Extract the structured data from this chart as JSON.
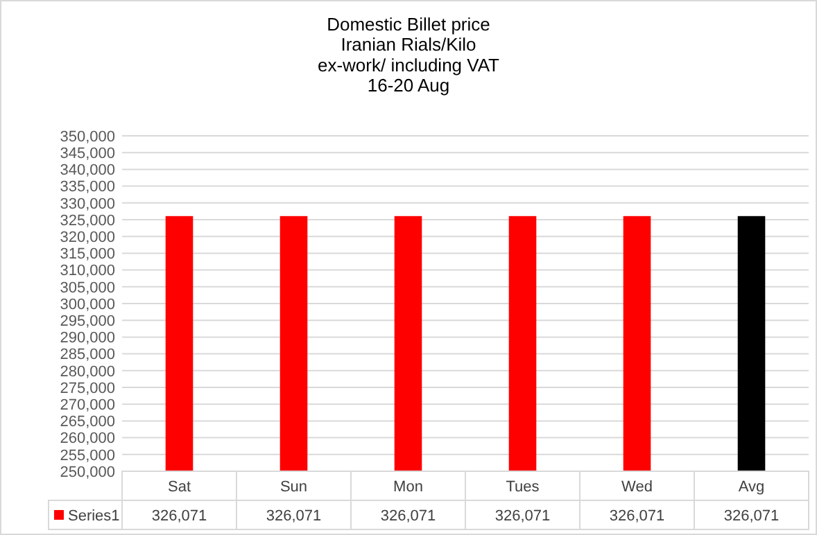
{
  "chart_data": {
    "type": "bar",
    "title": "Domestic Billet price\nIranian Rials/Kilo\nex-work/ including VAT\n16-20 Aug",
    "categories": [
      "Sat",
      "Sun",
      "Mon",
      "Tues",
      "Wed",
      "Avg"
    ],
    "series": [
      {
        "name": "Series1",
        "color": "#ff0000",
        "colors": [
          "#ff0000",
          "#ff0000",
          "#ff0000",
          "#ff0000",
          "#ff0000",
          "#000000"
        ],
        "values": [
          326071,
          326071,
          326071,
          326071,
          326071,
          326071
        ],
        "value_labels": [
          "326,071",
          "326,071",
          "326,071",
          "326,071",
          "326,071",
          "326,071"
        ]
      }
    ],
    "ylim": [
      250000,
      350000
    ],
    "yticks": [
      {
        "value": 250000,
        "label": "250,000"
      },
      {
        "value": 255000,
        "label": "255,000"
      },
      {
        "value": 260000,
        "label": "260,000"
      },
      {
        "value": 265000,
        "label": "265,000"
      },
      {
        "value": 270000,
        "label": "270,000"
      },
      {
        "value": 275000,
        "label": "275,000"
      },
      {
        "value": 280000,
        "label": "280,000"
      },
      {
        "value": 285000,
        "label": "285,000"
      },
      {
        "value": 290000,
        "label": "290,000"
      },
      {
        "value": 295000,
        "label": "295,000"
      },
      {
        "value": 300000,
        "label": "300,000"
      },
      {
        "value": 305000,
        "label": "305,000"
      },
      {
        "value": 310000,
        "label": "310,000"
      },
      {
        "value": 315000,
        "label": "315,000"
      },
      {
        "value": 320000,
        "label": "320,000"
      },
      {
        "value": 325000,
        "label": "325,000"
      },
      {
        "value": 330000,
        "label": "330,000"
      },
      {
        "value": 335000,
        "label": "335,000"
      },
      {
        "value": 340000,
        "label": "340,000"
      },
      {
        "value": 345000,
        "label": "345,000"
      },
      {
        "value": 350000,
        "label": "350,000"
      }
    ],
    "grid": "y",
    "legend": "bottom"
  }
}
